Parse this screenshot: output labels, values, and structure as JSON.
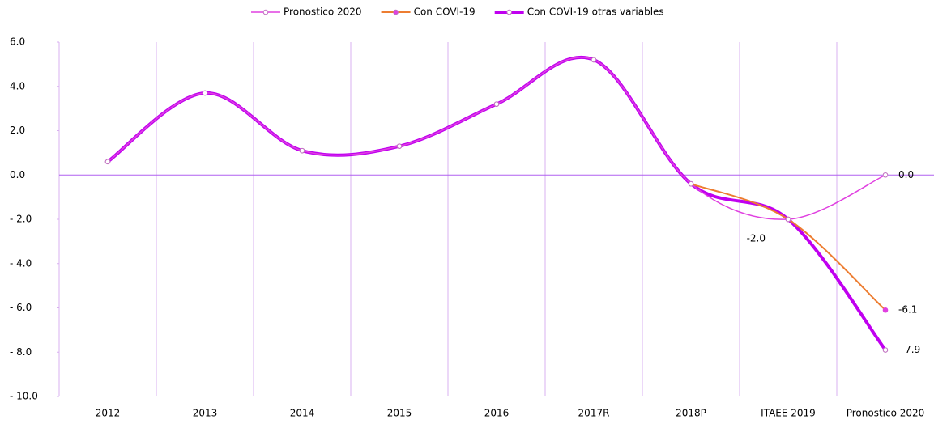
{
  "chart_data": {
    "type": "line",
    "categories": [
      "2012",
      "2013",
      "2014",
      "2015",
      "2016",
      "2017R",
      "2018P",
      "ITAEE 2019",
      "Pronostico 2020"
    ],
    "series": [
      {
        "name": "Pronostico 2020",
        "color": "#e040e0",
        "values": [
          0.6,
          3.7,
          1.1,
          1.3,
          3.2,
          5.2,
          -0.4,
          -2.0,
          0.0
        ],
        "value_labels": [
          null,
          null,
          null,
          null,
          null,
          null,
          null,
          "-2.0",
          "0.0"
        ]
      },
      {
        "name": "Con COVI-19",
        "color": "#ed7d31",
        "values": [
          null,
          null,
          null,
          null,
          null,
          null,
          -0.4,
          -2.0,
          -6.1
        ],
        "value_labels": [
          null,
          null,
          null,
          null,
          null,
          null,
          null,
          null,
          "-6.1"
        ]
      },
      {
        "name": "Con COVI-19 otras variables",
        "color": "#c000f0",
        "values": [
          0.6,
          3.7,
          1.1,
          1.3,
          3.2,
          5.2,
          -0.4,
          -2.0,
          -7.9
        ],
        "value_labels": [
          null,
          null,
          null,
          null,
          null,
          null,
          null,
          null,
          "- 7.9"
        ]
      }
    ],
    "ylim": [
      -10,
      6
    ],
    "yticks": [
      {
        "value": 6,
        "label": "6.0"
      },
      {
        "value": 4,
        "label": "4.0"
      },
      {
        "value": 2,
        "label": "2.0"
      },
      {
        "value": 0,
        "label": "0.0"
      },
      {
        "value": -2,
        "label": "- 2.0"
      },
      {
        "value": -4,
        "label": "- 4.0"
      },
      {
        "value": -6,
        "label": "- 6.0"
      },
      {
        "value": -8,
        "label": "- 8.0"
      },
      {
        "value": -10,
        "label": "- 10.0"
      }
    ],
    "legend": "top",
    "grid": true
  }
}
